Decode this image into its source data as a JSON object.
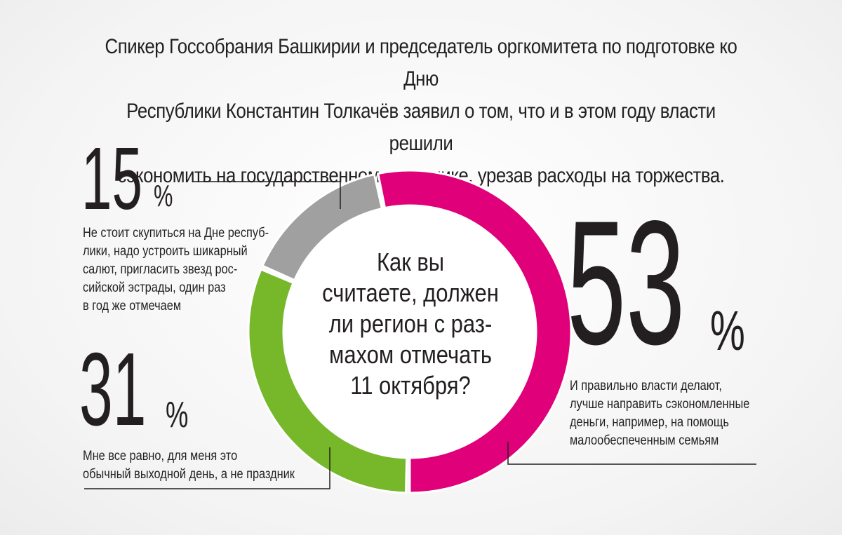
{
  "header": {
    "lines": [
      "Спикер Госсобрания Башкирии и председатель оргкомитета по подготовке ко Дню",
      "Республики Константин Толкачёв заявил о том, что и в этом году власти решили",
      "сэкономить на государственном празднике, урезав расходы на торжества."
    ]
  },
  "chart_data": {
    "type": "pie",
    "title": "Как вы считаете, должен ли регион с размахом отмечать 11 октября?",
    "categories": [
      "И правильно власти делают, лучше направить сэкономленные деньги, например, на помощь малообеспеченным семьям",
      "Мне все равно, для меня это обычный выходной день, а не праздник",
      "Не стоит скупиться на Дне республики, надо устроить шикарный салют, пригласить звезд российской эстрады, один раз в год же отмечаем"
    ],
    "values": [
      53,
      31,
      15
    ],
    "colors": [
      "#e0007a",
      "#76b82a",
      "#a0a0a0"
    ],
    "unit": "%",
    "donut": true
  },
  "labels": {
    "pct_sign": "%",
    "big15": "15",
    "big31": "31",
    "big53": "53",
    "note15": [
      "Не стоит скупиться на Дне респуб-",
      "лики, надо устроить шикарный",
      "салют, пригласить звезд рос-",
      "сийской эстрады, один раз",
      "в год же отмечаем"
    ],
    "note31": [
      "Мне все равно, для меня это",
      "обычный выходной день, а не праздник"
    ],
    "note53": [
      "И правильно власти делают,",
      "лучше направить сэкономленные",
      "деньги, например, на помощь",
      "малообеспеченным семьям"
    ]
  },
  "center_question": [
    "Как вы",
    "считаете, должен",
    "ли регион с раз-",
    "махом отмечать",
    "11 октября?"
  ]
}
